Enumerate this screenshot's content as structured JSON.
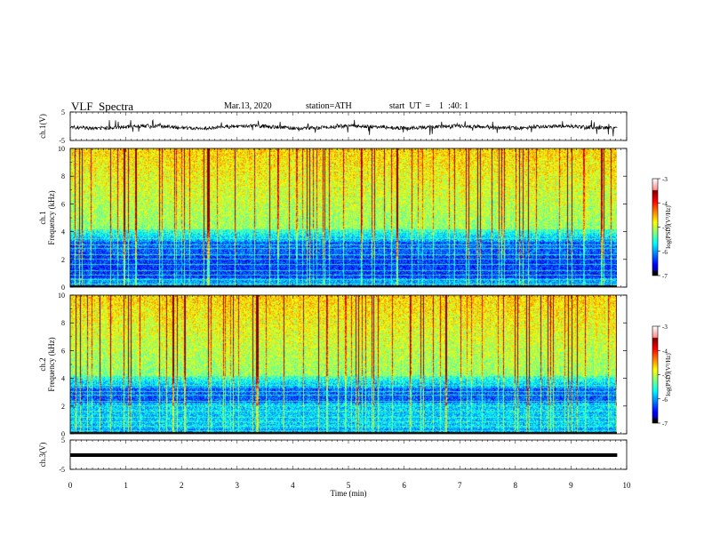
{
  "header": {
    "title": "VLF  Spectra",
    "date": "Mar.13, 2020",
    "station": "station=ATH",
    "start": "start  UT  =    1  :40: 1"
  },
  "chart_data": [
    {
      "type": "line",
      "panel": "ch1-waveform",
      "ylabel": "ch.1(V)",
      "ylim": [
        -5,
        5
      ],
      "yticks": [
        "5",
        "-5"
      ],
      "x_range_min": [
        0,
        9.83
      ],
      "series_color": "#000000"
    },
    {
      "type": "heatmap",
      "panel": "ch1-spectrogram",
      "ylabel": "ch.1\nFrequency  (kHz)",
      "ylim": [
        0,
        10
      ],
      "yticks": [
        "0",
        "2",
        "4",
        "6",
        "8",
        "10"
      ],
      "x_range_min": [
        0,
        9.83
      ],
      "colorbar": {
        "label": "log(PSD)(V²/Hz)",
        "range": [
          -7,
          -3
        ],
        "ticks": [
          "-3",
          "-4",
          "-5",
          "-6",
          "-7"
        ]
      }
    },
    {
      "type": "heatmap",
      "panel": "ch2-spectrogram",
      "ylabel": "ch.2\nFrequency  (kHz)",
      "ylim": [
        0,
        10
      ],
      "yticks": [
        "0",
        "2",
        "4",
        "6",
        "8",
        "10"
      ],
      "x_range_min": [
        0,
        9.83
      ],
      "colorbar": {
        "label": "log(PSD)(V²/Hz)",
        "range": [
          -7,
          -3
        ],
        "ticks": [
          "-3",
          "-4",
          "-5",
          "-6",
          "-7"
        ]
      }
    },
    {
      "type": "line",
      "panel": "ch3-waveform",
      "ylabel": "ch.3(V)",
      "ylim": [
        -5,
        5
      ],
      "yticks": [
        "5",
        "-5"
      ],
      "x_range_min": [
        0,
        9.83
      ],
      "series_color": "#000000"
    }
  ],
  "xaxis": {
    "label": "Time  (min)",
    "ticks": [
      "0",
      "1",
      "2",
      "3",
      "4",
      "5",
      "6",
      "7",
      "8",
      "9",
      "10"
    ],
    "range": [
      0,
      10
    ]
  }
}
